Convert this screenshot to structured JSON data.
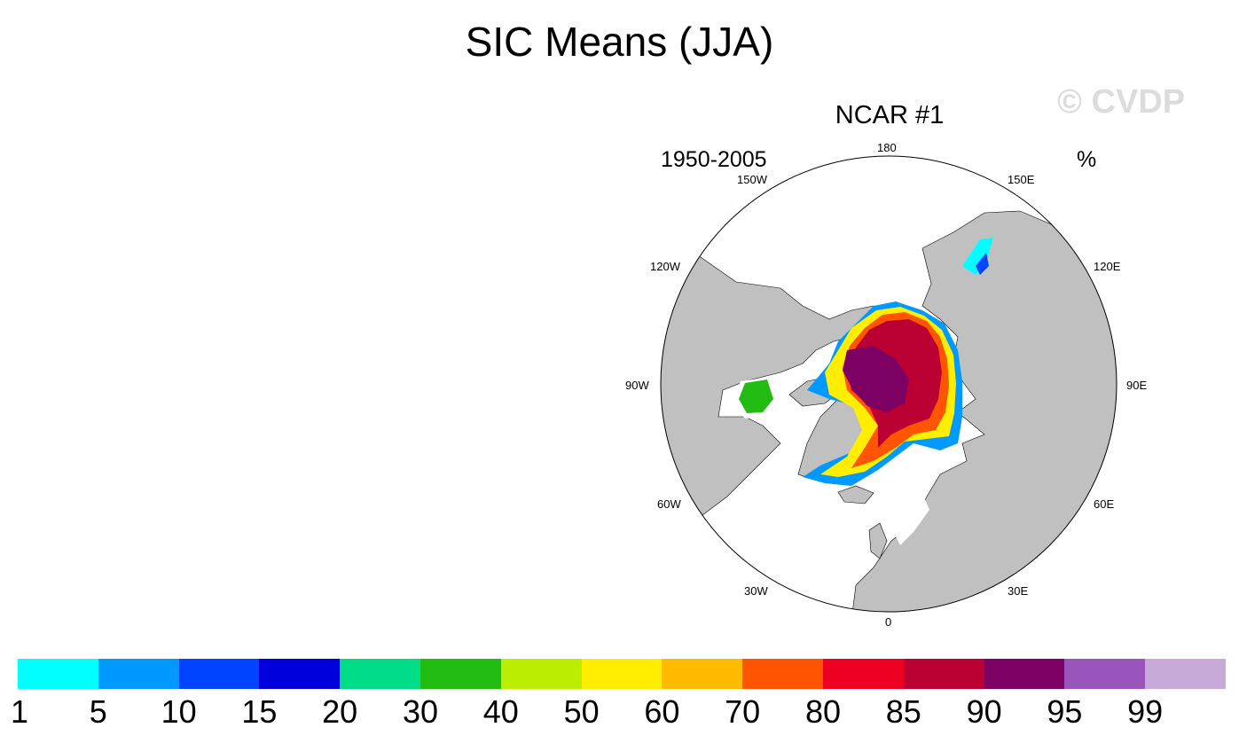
{
  "title": "SIC Means (JJA)",
  "watermark": "© CVDP",
  "panel": {
    "title": "NCAR #1",
    "period": "1950-2005",
    "units": "%"
  },
  "longitude_labels": {
    "n180": "180",
    "e150": "150E",
    "e120": "120E",
    "e90": "90E",
    "e60": "60E",
    "e30": "30E",
    "n0": "0",
    "w30": "30W",
    "w60": "60W",
    "w90": "90W",
    "w120": "120W",
    "w150": "150W"
  },
  "colorbar": {
    "colors": [
      "#00ffff",
      "#0099ff",
      "#0044ff",
      "#0000dd",
      "#00dd88",
      "#22bb11",
      "#bbee00",
      "#ffee00",
      "#ffbb00",
      "#ff5500",
      "#ee0022",
      "#bb0033",
      "#7d0063",
      "#9955bb",
      "#c8aad8"
    ],
    "ticks": [
      "1",
      "5",
      "10",
      "15",
      "20",
      "30",
      "40",
      "50",
      "60",
      "70",
      "80",
      "85",
      "90",
      "95",
      "99"
    ]
  },
  "style": {
    "land": "#c0c0c0",
    "ocean": "#ffffff",
    "outline": "#000000"
  }
}
